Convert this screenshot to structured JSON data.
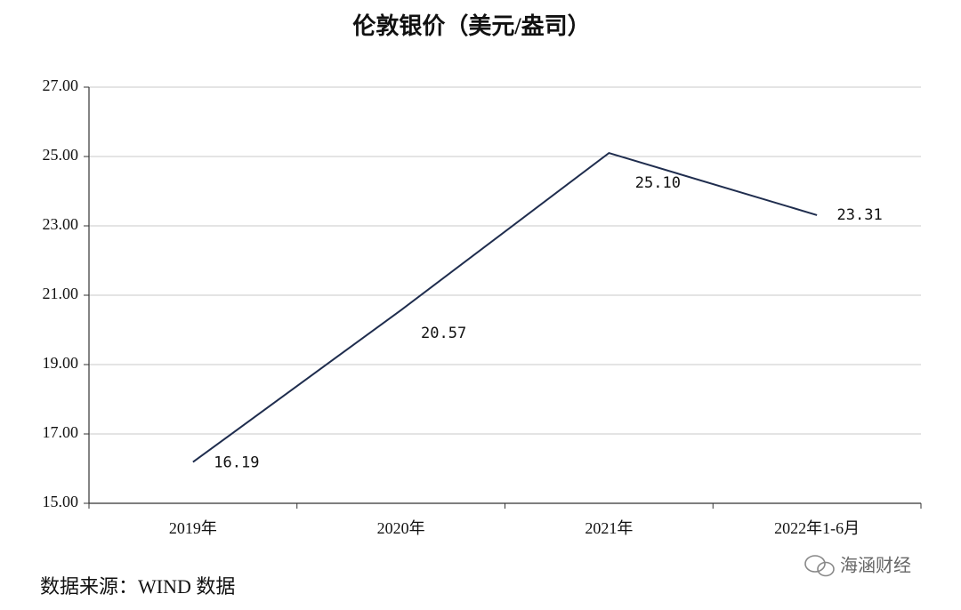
{
  "chart_data": {
    "type": "line",
    "title": "伦敦银价（美元/盎司）",
    "categories": [
      "2019年",
      "2020年",
      "2021年",
      "2022年1-6月"
    ],
    "series": [
      {
        "name": "伦敦银价",
        "color": "#1f2d4e",
        "values": [
          16.19,
          20.57,
          25.1,
          23.31
        ],
        "value_labels": [
          "16.19",
          "20.57",
          "25.10",
          "23.31"
        ]
      }
    ],
    "ylim": [
      15,
      27
    ],
    "yticks": [
      {
        "value": 15,
        "label": "15.00"
      },
      {
        "value": 17,
        "label": "17.00"
      },
      {
        "value": 19,
        "label": "19.00"
      },
      {
        "value": 21,
        "label": "21.00"
      },
      {
        "value": 23,
        "label": "23.00"
      },
      {
        "value": 25,
        "label": "25.00"
      },
      {
        "value": 27,
        "label": "27.00"
      }
    ],
    "grid": true,
    "source": "数据来源：WIND 数据",
    "watermark": "海涵财经"
  }
}
